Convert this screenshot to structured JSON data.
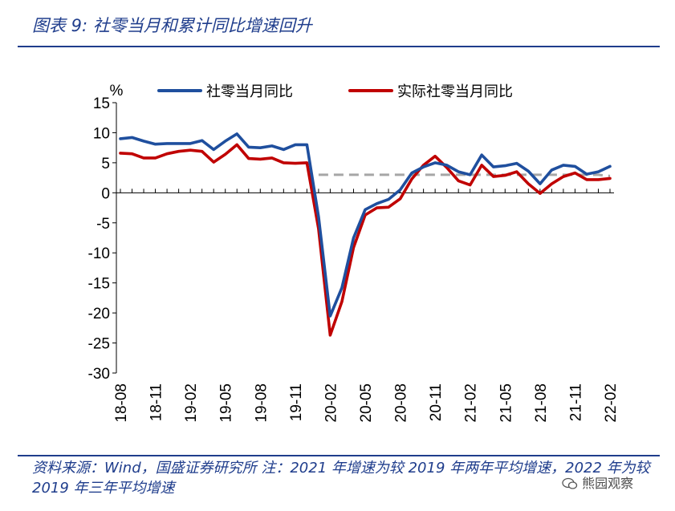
{
  "header": {
    "title": "图表 9:  社零当月和累计同比增速回升"
  },
  "footer": {
    "source": "资料来源：Wind，国盛证券研究所  注：2021 年增速为较 2019 年两年平均增速，2022 年为较 2019 年三年平均增速",
    "watermark": "熊园观察"
  },
  "colors": {
    "accent": "#1f3d8c",
    "series1": "#1f4f9e",
    "series2": "#c00000",
    "reference": "#a6a6a6"
  },
  "chart_data": {
    "type": "line",
    "ylabel": "%",
    "ylim": [
      -30,
      15
    ],
    "yticks": [
      15,
      10,
      5,
      0,
      -5,
      -10,
      -15,
      -20,
      -25,
      -30
    ],
    "xticks": [
      "18-08",
      "18-11",
      "19-02",
      "19-05",
      "19-08",
      "19-11",
      "20-02",
      "20-05",
      "20-08",
      "20-11",
      "21-02",
      "21-05",
      "21-08",
      "21-11",
      "22-02"
    ],
    "legend_position": "top",
    "x": [
      "18-08",
      "18-09",
      "18-10",
      "18-11",
      "18-12",
      "19-01",
      "19-02",
      "19-03",
      "19-04",
      "19-05",
      "19-06",
      "19-07",
      "19-08",
      "19-09",
      "19-10",
      "19-11",
      "19-12",
      "20-01",
      "20-02",
      "20-03",
      "20-04",
      "20-05",
      "20-06",
      "20-07",
      "20-08",
      "20-09",
      "20-10",
      "20-11",
      "20-12",
      "21-01",
      "21-02",
      "21-03",
      "21-04",
      "21-05",
      "21-06",
      "21-07",
      "21-08",
      "21-09",
      "21-10",
      "21-11",
      "21-12",
      "22-01",
      "22-02"
    ],
    "series": [
      {
        "name": "社零当月同比",
        "values": [
          9.0,
          9.2,
          8.6,
          8.1,
          8.2,
          8.2,
          8.2,
          8.7,
          7.2,
          8.6,
          9.8,
          7.6,
          7.5,
          7.8,
          7.2,
          8.0,
          8.0,
          -4.0,
          -20.5,
          -15.8,
          -7.5,
          -2.8,
          -1.8,
          -1.1,
          0.5,
          3.3,
          4.3,
          5.0,
          4.6,
          3.5,
          3.0,
          6.3,
          4.3,
          4.5,
          4.9,
          3.6,
          1.5,
          3.8,
          4.6,
          4.4,
          3.1,
          3.5,
          4.4
        ]
      },
      {
        "name": "实际社零当月同比",
        "values": [
          6.6,
          6.5,
          5.8,
          5.8,
          6.5,
          6.9,
          7.1,
          6.9,
          5.1,
          6.4,
          8.0,
          5.7,
          5.6,
          5.8,
          5.0,
          4.9,
          5.0,
          -6.0,
          -23.7,
          -18.1,
          -9.1,
          -3.7,
          -2.5,
          -2.4,
          -1.0,
          2.3,
          4.6,
          6.1,
          4.2,
          2.0,
          1.3,
          4.6,
          2.7,
          2.9,
          3.5,
          1.5,
          -0.1,
          1.5,
          2.7,
          3.3,
          2.2,
          2.2,
          2.4
        ]
      },
      {
        "name": "",
        "values": [
          null,
          null,
          null,
          null,
          null,
          null,
          null,
          null,
          null,
          null,
          null,
          null,
          null,
          null,
          null,
          null,
          null,
          3.0,
          3.0,
          3.0,
          3.0,
          3.0,
          3.0,
          3.0,
          3.0,
          3.0,
          3.0,
          3.0,
          3.0,
          3.0,
          3.0,
          3.0,
          3.0,
          3.0,
          3.0,
          3.0,
          3.0,
          3.0,
          3.0,
          3.0,
          3.0,
          3.0,
          2.8
        ]
      }
    ]
  }
}
